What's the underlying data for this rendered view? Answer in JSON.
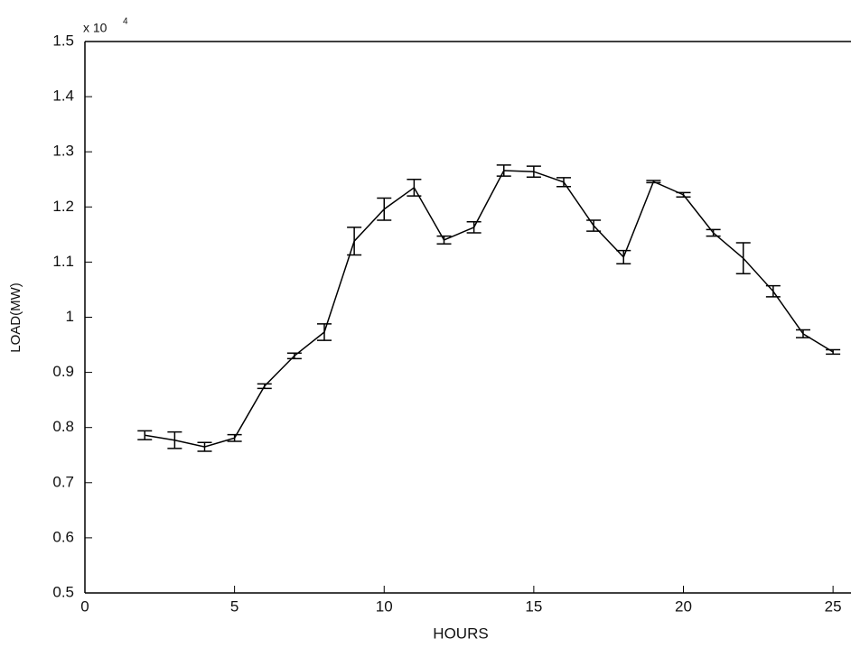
{
  "chart_data": {
    "type": "errorbar",
    "x_label": "HOURS",
    "y_label": "LOAD(MW)",
    "y_multiplier": "x 10",
    "y_multiplier_exp": "4",
    "x": [
      2,
      3,
      4,
      5,
      6,
      7,
      8,
      9,
      10,
      11,
      12,
      13,
      14,
      15,
      16,
      17,
      18,
      19,
      20,
      21,
      22,
      23,
      24,
      25
    ],
    "values": [
      0.786,
      0.777,
      0.765,
      0.781,
      0.875,
      0.93,
      0.973,
      1.138,
      1.196,
      1.235,
      1.14,
      1.163,
      1.266,
      1.264,
      1.245,
      1.166,
      1.109,
      1.246,
      1.222,
      1.153,
      1.107,
      1.047,
      0.97,
      0.937
    ],
    "errors": [
      0.008,
      0.015,
      0.008,
      0.006,
      0.004,
      0.005,
      0.015,
      0.025,
      0.02,
      0.015,
      0.007,
      0.01,
      0.01,
      0.01,
      0.008,
      0.01,
      0.012,
      0.002,
      0.004,
      0.006,
      0.028,
      0.01,
      0.007,
      0.004
    ],
    "color": "#000000",
    "xlim": [
      0,
      25.6
    ],
    "xticks": [
      0,
      5,
      10,
      15,
      20,
      25
    ],
    "ylim": [
      0.5,
      1.5
    ],
    "yticks": [
      0.5,
      0.6,
      0.7,
      0.8,
      0.9,
      1,
      1.1,
      1.2,
      1.3,
      1.4,
      1.5
    ]
  }
}
